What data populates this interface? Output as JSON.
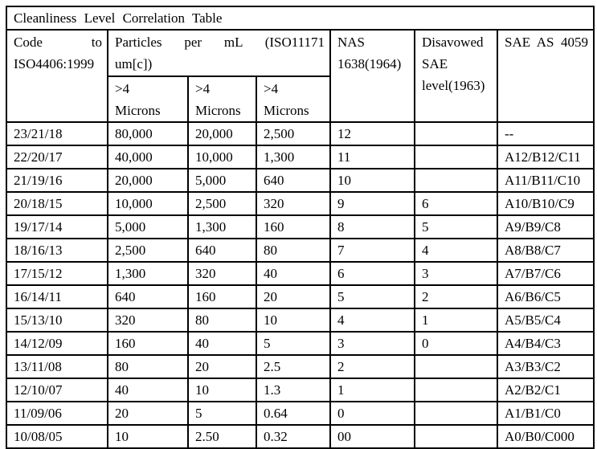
{
  "table": {
    "title": "Cleanliness Level Correlation Table",
    "header": {
      "code_l1": "Code to",
      "code_l2": "ISO4406:1999",
      "particles_l1": "Particles per mL (ISO11171",
      "particles_l2": "um[c])",
      "micron_l1": ">4",
      "micron_l2": "Microns",
      "nas_l1": "NAS",
      "nas_l2": "1638(1964)",
      "disavowed_l1": "Disavowed",
      "disavowed_l2": "SAE",
      "disavowed_l3": "level(1963)",
      "sae": "SAE AS 4059"
    },
    "rows": [
      [
        "23/21/18",
        "80,000",
        "20,000",
        "2,500",
        "12",
        "",
        "--"
      ],
      [
        "22/20/17",
        "40,000",
        "10,000",
        "1,300",
        "11",
        "",
        "A12/B12/C11"
      ],
      [
        "21/19/16",
        "20,000",
        "5,000",
        "640",
        "10",
        "",
        "A11/B11/C10"
      ],
      [
        "20/18/15",
        "10,000",
        "2,500",
        "320",
        "9",
        "6",
        "A10/B10/C9"
      ],
      [
        "19/17/14",
        "5,000",
        "1,300",
        "160",
        "8",
        "5",
        "A9/B9/C8"
      ],
      [
        "18/16/13",
        "2,500",
        "640",
        "80",
        "7",
        "4",
        "A8/B8/C7"
      ],
      [
        "17/15/12",
        "1,300",
        "320",
        "40",
        "6",
        "3",
        "A7/B7/C6"
      ],
      [
        "16/14/11",
        "640",
        "160",
        "20",
        "5",
        "2",
        "A6/B6/C5"
      ],
      [
        "15/13/10",
        "320",
        "80",
        "10",
        "4",
        "1",
        "A5/B5/C4"
      ],
      [
        "14/12/09",
        "160",
        "40",
        "5",
        "3",
        "0",
        "A4/B4/C3"
      ],
      [
        "13/11/08",
        "80",
        "20",
        "2.5",
        "2",
        "",
        "A3/B3/C2"
      ],
      [
        "12/10/07",
        "40",
        "10",
        "1.3",
        "1",
        "",
        "A2/B2/C1"
      ],
      [
        "11/09/06",
        "20",
        "5",
        "0.64",
        "0",
        "",
        "A1/B1/C0"
      ],
      [
        "10/08/05",
        "10",
        "2.50",
        "0.32",
        "00",
        "",
        "A0/B0/C000"
      ]
    ]
  },
  "colors": {
    "border": "#000000",
    "text": "#000000",
    "background": "#ffffff"
  }
}
